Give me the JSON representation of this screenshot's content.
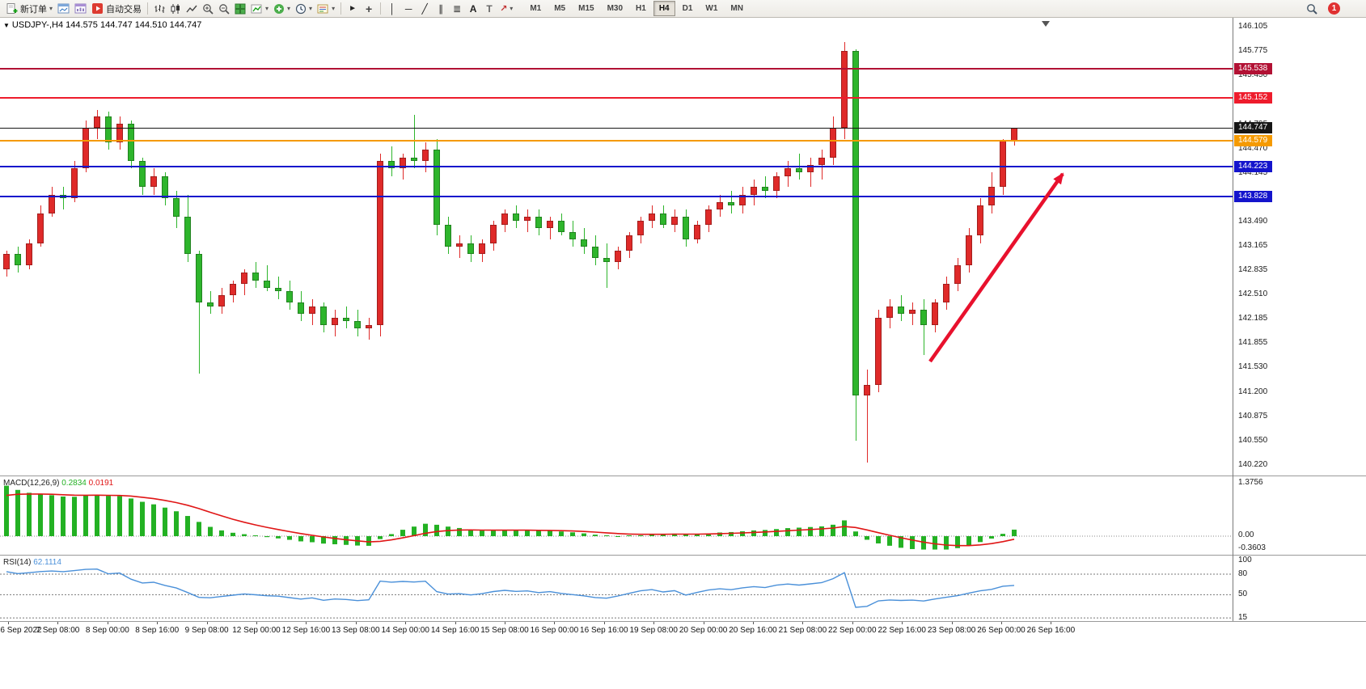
{
  "toolbar": {
    "new_order": "新订单",
    "auto_trading": "自动交易",
    "timeframes": [
      "M1",
      "M5",
      "M15",
      "M30",
      "H1",
      "H4",
      "D1",
      "W1",
      "MN"
    ],
    "active_timeframe": "H4",
    "notification_badge": "1",
    "tool_glyphs": {
      "caret": "▾",
      "cursor": "►",
      "crosshair": "+",
      "vertical_line": "│",
      "horizontal_line": "─",
      "trendline": "╱",
      "channel": "∥",
      "fibonacci": "≣",
      "text": "A",
      "text_label": "T",
      "arrows": "↗"
    }
  },
  "chart": {
    "symbol_period": "USDJPY-,H4",
    "ohlc_text": "144.575 144.747 144.510 144.747"
  },
  "chart_data": {
    "type": "candlestick",
    "symbol": "USDJPY-",
    "period": "H4",
    "up_color": "#df2a29",
    "down_color": "#2eb52c",
    "ylim": [
      140.22,
      146.105
    ],
    "price_axis_labels": [
      "146.105",
      "145.775",
      "145.450",
      "145.120",
      "144.795",
      "144.470",
      "144.145",
      "143.820",
      "143.490",
      "143.165",
      "142.835",
      "142.510",
      "142.185",
      "141.855",
      "141.530",
      "141.200",
      "140.875",
      "140.550",
      "140.220"
    ],
    "hlines": [
      {
        "price": 145.538,
        "label": "145.538",
        "color": "#b21134"
      },
      {
        "price": 145.152,
        "label": "145.152",
        "color": "#ee1c2c"
      },
      {
        "price": 144.747,
        "label": "144.747",
        "color": "#161616",
        "current": true
      },
      {
        "price": 144.579,
        "label": "144.579",
        "color": "#f59a00"
      },
      {
        "price": 144.223,
        "label": "144.223",
        "color": "#1414cc"
      },
      {
        "price": 143.828,
        "label": "143.828",
        "color": "#1414cc"
      }
    ],
    "time_labels": [
      "6 Sep 2022",
      "7 Sep 08:00",
      "8 Sep 00:00",
      "8 Sep 16:00",
      "9 Sep 08:00",
      "12 Sep 00:00",
      "12 Sep 16:00",
      "13 Sep 08:00",
      "14 Sep 00:00",
      "14 Sep 16:00",
      "15 Sep 08:00",
      "16 Sep 00:00",
      "16 Sep 16:00",
      "19 Sep 08:00",
      "20 Sep 00:00",
      "20 Sep 16:00",
      "21 Sep 08:00",
      "22 Sep 00:00",
      "22 Sep 16:00",
      "23 Sep 08:00",
      "26 Sep 00:00",
      "26 Sep 16:00"
    ],
    "candles": [
      [
        142.85,
        143.1,
        142.75,
        143.05
      ],
      [
        143.05,
        143.15,
        142.8,
        142.9
      ],
      [
        142.9,
        143.25,
        142.85,
        143.2
      ],
      [
        143.2,
        143.7,
        143.15,
        143.6
      ],
      [
        143.6,
        143.95,
        143.55,
        143.85
      ],
      [
        143.85,
        143.95,
        143.65,
        143.8
      ],
      [
        143.8,
        144.3,
        143.75,
        144.2
      ],
      [
        144.2,
        144.85,
        144.15,
        144.75
      ],
      [
        144.75,
        144.99,
        144.6,
        144.9
      ],
      [
        144.9,
        144.97,
        144.45,
        144.55
      ],
      [
        144.55,
        144.9,
        144.45,
        144.8
      ],
      [
        144.8,
        144.85,
        144.2,
        144.3
      ],
      [
        144.3,
        144.35,
        143.85,
        143.95
      ],
      [
        143.95,
        144.2,
        143.85,
        144.1
      ],
      [
        144.1,
        144.15,
        143.7,
        143.8
      ],
      [
        143.8,
        143.9,
        143.4,
        143.55
      ],
      [
        143.55,
        143.85,
        142.95,
        143.05
      ],
      [
        143.05,
        143.1,
        141.45,
        142.4
      ],
      [
        142.4,
        142.55,
        142.25,
        142.35
      ],
      [
        142.35,
        142.6,
        142.25,
        142.5
      ],
      [
        142.5,
        142.7,
        142.4,
        142.65
      ],
      [
        142.65,
        142.85,
        142.5,
        142.8
      ],
      [
        142.8,
        142.95,
        142.6,
        142.7
      ],
      [
        142.7,
        142.9,
        142.55,
        142.6
      ],
      [
        142.6,
        142.75,
        142.45,
        142.55
      ],
      [
        142.55,
        142.7,
        142.3,
        142.4
      ],
      [
        142.4,
        142.55,
        142.15,
        142.25
      ],
      [
        142.25,
        142.45,
        142.1,
        142.35
      ],
      [
        142.35,
        142.4,
        142.0,
        142.1
      ],
      [
        142.1,
        142.3,
        141.95,
        142.2
      ],
      [
        142.2,
        142.35,
        142.05,
        142.15
      ],
      [
        142.15,
        142.3,
        141.95,
        142.05
      ],
      [
        142.05,
        142.2,
        141.9,
        142.1
      ],
      [
        142.1,
        144.4,
        141.95,
        144.3
      ],
      [
        144.3,
        144.5,
        144.1,
        144.2
      ],
      [
        144.2,
        144.4,
        144.05,
        144.35
      ],
      [
        144.35,
        144.92,
        144.2,
        144.3
      ],
      [
        144.3,
        144.55,
        144.15,
        144.45
      ],
      [
        144.45,
        144.6,
        143.3,
        143.45
      ],
      [
        143.45,
        143.55,
        143.05,
        143.15
      ],
      [
        143.15,
        143.3,
        143.0,
        143.2
      ],
      [
        143.2,
        143.3,
        142.95,
        143.05
      ],
      [
        143.05,
        143.25,
        142.95,
        143.2
      ],
      [
        143.2,
        143.5,
        143.1,
        143.45
      ],
      [
        143.45,
        143.65,
        143.35,
        143.6
      ],
      [
        143.6,
        143.7,
        143.4,
        143.5
      ],
      [
        143.5,
        143.65,
        143.35,
        143.55
      ],
      [
        143.55,
        143.65,
        143.3,
        143.4
      ],
      [
        143.4,
        143.55,
        143.25,
        143.5
      ],
      [
        143.5,
        143.6,
        143.3,
        143.35
      ],
      [
        143.35,
        143.5,
        143.15,
        143.25
      ],
      [
        143.25,
        143.4,
        143.05,
        143.15
      ],
      [
        143.15,
        143.3,
        142.9,
        143.0
      ],
      [
        143.0,
        143.2,
        142.6,
        142.95
      ],
      [
        142.95,
        143.15,
        142.85,
        143.1
      ],
      [
        143.1,
        143.35,
        143.0,
        143.3
      ],
      [
        143.3,
        143.55,
        143.2,
        143.5
      ],
      [
        143.5,
        143.7,
        143.4,
        143.6
      ],
      [
        143.6,
        143.7,
        143.4,
        143.45
      ],
      [
        143.45,
        143.65,
        143.35,
        143.55
      ],
      [
        143.55,
        143.65,
        143.15,
        143.25
      ],
      [
        143.25,
        143.5,
        143.2,
        143.45
      ],
      [
        143.45,
        143.7,
        143.35,
        143.65
      ],
      [
        143.65,
        143.85,
        143.55,
        143.75
      ],
      [
        143.75,
        143.9,
        143.6,
        143.7
      ],
      [
        143.7,
        143.95,
        143.6,
        143.85
      ],
      [
        143.85,
        144.05,
        143.7,
        143.95
      ],
      [
        143.95,
        144.1,
        143.8,
        143.9
      ],
      [
        143.9,
        144.15,
        143.8,
        144.1
      ],
      [
        144.1,
        144.3,
        143.95,
        144.2
      ],
      [
        144.2,
        144.4,
        144.05,
        144.15
      ],
      [
        144.15,
        144.35,
        143.95,
        144.25
      ],
      [
        144.25,
        144.45,
        144.05,
        144.35
      ],
      [
        144.35,
        144.9,
        144.25,
        144.75
      ],
      [
        144.75,
        145.9,
        144.6,
        145.78
      ],
      [
        145.78,
        145.8,
        140.55,
        141.15
      ],
      [
        141.15,
        141.5,
        140.25,
        141.3
      ],
      [
        141.3,
        142.3,
        141.2,
        142.2
      ],
      [
        142.2,
        142.45,
        142.05,
        142.35
      ],
      [
        142.35,
        142.5,
        142.15,
        142.25
      ],
      [
        142.25,
        142.4,
        142.1,
        142.3
      ],
      [
        142.3,
        142.45,
        141.7,
        142.1
      ],
      [
        142.1,
        142.45,
        142.0,
        142.4
      ],
      [
        142.4,
        142.75,
        142.3,
        142.65
      ],
      [
        142.65,
        143.0,
        142.55,
        142.9
      ],
      [
        142.9,
        143.4,
        142.8,
        143.3
      ],
      [
        143.3,
        143.8,
        143.2,
        143.7
      ],
      [
        143.7,
        144.15,
        143.6,
        143.95
      ],
      [
        143.95,
        144.6,
        143.85,
        144.575
      ],
      [
        144.575,
        144.747,
        144.51,
        144.747
      ]
    ]
  },
  "macd": {
    "label": "MACD(12,26,9)",
    "value_main": "0.2834",
    "value_signal": "0.0191",
    "scale_max": "1.3756",
    "scale_zero": "0.00",
    "scale_min": "-0.3603",
    "histogram_color": "#23b123",
    "signal_color": "#e01616"
  },
  "rsi": {
    "label": "RSI(14)",
    "value": "62.1114",
    "levels": [
      "100",
      "80",
      "50",
      "15"
    ],
    "line_color": "#4a90d9"
  },
  "annotation": {
    "description": "red upward trend arrow",
    "color": "#e8112d"
  }
}
